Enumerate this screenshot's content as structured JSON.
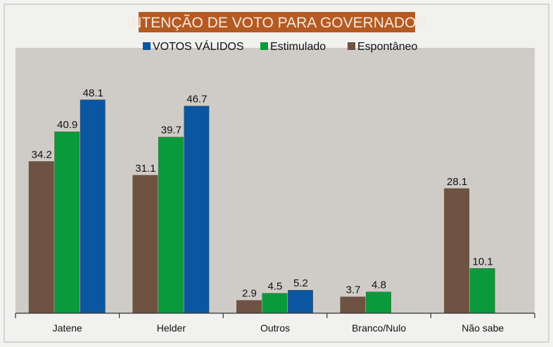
{
  "chart_data": {
    "type": "bar",
    "title": "INTENÇÃO DE VOTO PARA GOVERNADOR",
    "categories": [
      "Jatene",
      "Helder",
      "Outros",
      "Branco/Nulo",
      "Não sabe"
    ],
    "series": [
      {
        "name": "Espontâneo",
        "color": "#6e5242",
        "values": [
          34.2,
          31.1,
          2.9,
          3.7,
          28.1
        ]
      },
      {
        "name": "Estimulado",
        "color": "#0a9a3c",
        "values": [
          40.9,
          39.7,
          4.5,
          4.8,
          10.1
        ]
      },
      {
        "name": "VOTOS VÁLIDOS",
        "color": "#0b56a0",
        "values": [
          48.1,
          46.7,
          5.2,
          null,
          null
        ]
      }
    ],
    "legend_order": [
      "VOTOS VÁLIDOS",
      "Estimulado",
      "Espontâneo"
    ],
    "legend_position": "top",
    "xlabel": "",
    "ylabel": "",
    "ylim": [
      0,
      59.8
    ],
    "grid": false,
    "title_bg": "#b45a22"
  }
}
